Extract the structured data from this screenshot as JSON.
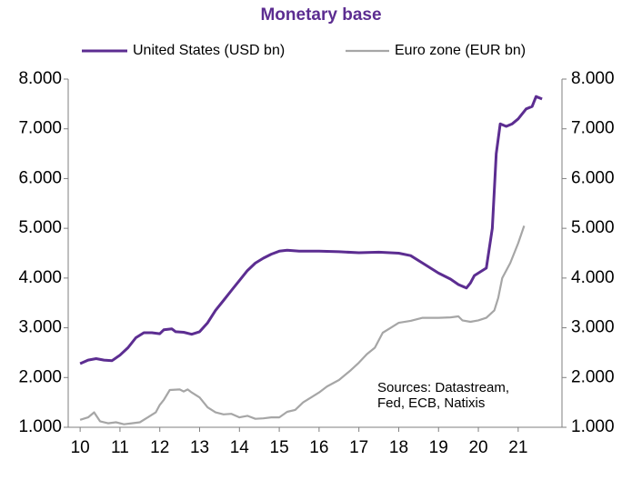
{
  "chart_data": {
    "type": "line",
    "title": "Monetary base",
    "annotation_lines": [
      "Sources: Datastream,",
      "Fed, ECB, Natixis"
    ],
    "xlim": [
      9.7,
      22.1
    ],
    "xticks": [
      10,
      11,
      12,
      13,
      14,
      15,
      16,
      17,
      18,
      19,
      20,
      21
    ],
    "ylim": [
      1000,
      8000
    ],
    "yticks": [
      {
        "value": 1000,
        "label": "1.000"
      },
      {
        "value": 2000,
        "label": "2.000"
      },
      {
        "value": 3000,
        "label": "3.000"
      },
      {
        "value": 4000,
        "label": "4.000"
      },
      {
        "value": 5000,
        "label": "5.000"
      },
      {
        "value": 6000,
        "label": "6.000"
      },
      {
        "value": 7000,
        "label": "7.000"
      },
      {
        "value": 8000,
        "label": "8.000"
      }
    ],
    "y2lim": [
      1000,
      8000
    ],
    "y2ticks": [
      {
        "value": 1000,
        "label": "1.000"
      },
      {
        "value": 2000,
        "label": "2.000"
      },
      {
        "value": 3000,
        "label": "3.000"
      },
      {
        "value": 4000,
        "label": "4.000"
      },
      {
        "value": 5000,
        "label": "5.000"
      },
      {
        "value": 6000,
        "label": "6.000"
      },
      {
        "value": 7000,
        "label": "7.000"
      },
      {
        "value": 8000,
        "label": "8.000"
      }
    ],
    "grid": false,
    "series": [
      {
        "name": "United States (USD bn)",
        "color": "#5c2d91",
        "axis": "y",
        "x": [
          10.0,
          10.2,
          10.4,
          10.6,
          10.8,
          11.0,
          11.2,
          11.4,
          11.6,
          11.8,
          12.0,
          12.1,
          12.3,
          12.4,
          12.6,
          12.8,
          13.0,
          13.2,
          13.4,
          13.6,
          13.8,
          14.0,
          14.2,
          14.4,
          14.6,
          14.8,
          15.0,
          15.2,
          15.5,
          16.0,
          16.5,
          17.0,
          17.5,
          18.0,
          18.3,
          18.6,
          19.0,
          19.3,
          19.5,
          19.7,
          19.8,
          19.9,
          20.1,
          20.2,
          20.35,
          20.45,
          20.55,
          20.7,
          20.85,
          21.0,
          21.2,
          21.35,
          21.45,
          21.6
        ],
        "values": [
          2280,
          2350,
          2380,
          2350,
          2340,
          2450,
          2600,
          2800,
          2900,
          2900,
          2880,
          2960,
          2980,
          2920,
          2910,
          2870,
          2920,
          3100,
          3350,
          3550,
          3750,
          3950,
          4150,
          4300,
          4400,
          4480,
          4540,
          4560,
          4540,
          4540,
          4530,
          4510,
          4520,
          4500,
          4450,
          4300,
          4100,
          3980,
          3870,
          3800,
          3900,
          4050,
          4150,
          4200,
          5000,
          6500,
          7100,
          7050,
          7100,
          7200,
          7400,
          7450,
          7650,
          7600
        ]
      },
      {
        "name": "Euro zone (EUR bn)",
        "color": "#a6a6a6",
        "axis": "y2",
        "x": [
          10.0,
          10.2,
          10.35,
          10.5,
          10.7,
          10.9,
          11.1,
          11.3,
          11.5,
          11.7,
          11.9,
          12.0,
          12.1,
          12.25,
          12.5,
          12.6,
          12.7,
          12.8,
          13.0,
          13.2,
          13.4,
          13.6,
          13.8,
          14.0,
          14.2,
          14.4,
          14.6,
          14.8,
          15.0,
          15.2,
          15.4,
          15.6,
          15.8,
          16.0,
          16.2,
          16.5,
          16.8,
          17.0,
          17.2,
          17.4,
          17.6,
          17.8,
          18.0,
          18.3,
          18.6,
          19.0,
          19.3,
          19.5,
          19.6,
          19.8,
          20.0,
          20.2,
          20.4,
          20.5,
          20.6,
          20.8,
          21.0,
          21.15
        ],
        "values": [
          1150,
          1200,
          1300,
          1120,
          1080,
          1100,
          1060,
          1080,
          1100,
          1200,
          1300,
          1450,
          1550,
          1750,
          1760,
          1720,
          1760,
          1700,
          1600,
          1400,
          1300,
          1260,
          1270,
          1200,
          1230,
          1170,
          1180,
          1200,
          1200,
          1310,
          1350,
          1500,
          1600,
          1700,
          1820,
          1950,
          2150,
          2300,
          2470,
          2600,
          2900,
          3000,
          3100,
          3140,
          3200,
          3200,
          3210,
          3230,
          3150,
          3120,
          3150,
          3200,
          3350,
          3600,
          4000,
          4300,
          4700,
          5050
        ]
      }
    ]
  }
}
